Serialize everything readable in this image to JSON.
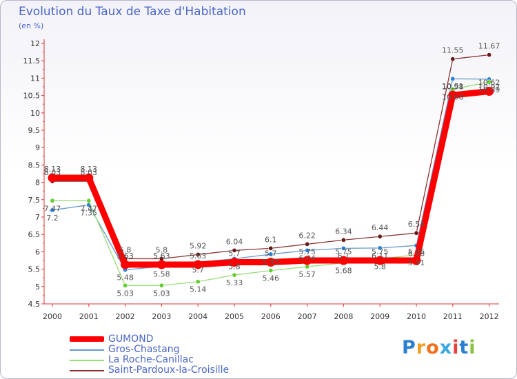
{
  "chart_data": {
    "type": "line",
    "title": "Evolution du Taux de Taxe d'Habitation",
    "ylabel": "(en %)",
    "xlabel": "",
    "categories": [
      "2000",
      "2001",
      "2002",
      "2003",
      "2004",
      "2005",
      "2006",
      "2007",
      "2008",
      "2009",
      "2010",
      "2011",
      "2012"
    ],
    "ylim": [
      4.5,
      12
    ],
    "yticks": [
      "4.5",
      "5",
      "5.5",
      "6",
      "6.5",
      "7",
      "7.5",
      "8",
      "8.5",
      "9",
      "9.5",
      "10",
      "10.5",
      "11",
      "11.5",
      "12"
    ],
    "grid": false,
    "legend_position": "bottom-left",
    "series": [
      {
        "name": "GUMOND",
        "color": "#ff0000",
        "marker": "#ff0000",
        "values": [
          8.13,
          8.13,
          5.63,
          5.63,
          5.63,
          5.7,
          5.7,
          5.75,
          5.75,
          5.75,
          5.75,
          10.51,
          10.62
        ],
        "labels": [
          "8.13",
          "8.13",
          "5.63",
          "5.63",
          "5.63",
          "5.7",
          "5.7",
          "5.75",
          "5.75",
          "5.75",
          "5.75",
          "10.51",
          "10.62"
        ]
      },
      {
        "name": "Gros-Chastang",
        "color": "#6699cc",
        "marker": "#2a80d8",
        "values": [
          7.2,
          7.35,
          5.48,
          5.58,
          5.7,
          5.8,
          5.93,
          6.04,
          6.1,
          6.11,
          6.18,
          10.98,
          10.97
        ],
        "labels": [
          "7.2",
          "7.35",
          "5.48",
          "5.58",
          "5.7",
          "5.8",
          "5.93",
          "6.04",
          "6.1",
          "6.11",
          "6.18",
          "10.98",
          "10.97"
        ]
      },
      {
        "name": "La Roche-Canillac",
        "color": "#99dd77",
        "marker": "#66cc33",
        "values": [
          7.47,
          7.47,
          5.03,
          5.03,
          5.14,
          5.33,
          5.46,
          5.57,
          5.68,
          5.8,
          5.91,
          10.68,
          10.89
        ],
        "labels": [
          "7.47",
          "7.47",
          "5.03",
          "5.03",
          "5.14",
          "5.33",
          "5.46",
          "5.57",
          "5.68",
          "5.8",
          "5.91",
          "10.68",
          "10.89"
        ]
      },
      {
        "name": "Saint-Pardoux-la-Croisille",
        "color": "#883333",
        "marker": "#661a1a",
        "values": [
          8.03,
          8.03,
          5.8,
          5.8,
          5.92,
          6.04,
          6.1,
          6.22,
          6.34,
          6.44,
          6.54,
          11.55,
          11.67
        ],
        "labels": [
          "8.03",
          "8.03",
          "5.8",
          "5.8",
          "5.92",
          "6.04",
          "6.1",
          "6.22",
          "6.34",
          "6.44",
          "6.54",
          "11.55",
          "11.67"
        ]
      }
    ]
  },
  "branding": {
    "letters": [
      "P",
      "r",
      "o",
      "x",
      "i",
      "t",
      "i"
    ],
    "colors": [
      "#2a7fd4",
      "#f0a020",
      "#f07020",
      "#3aa8e0",
      "#e84040",
      "#2a7fd4",
      "#8ac040"
    ]
  }
}
